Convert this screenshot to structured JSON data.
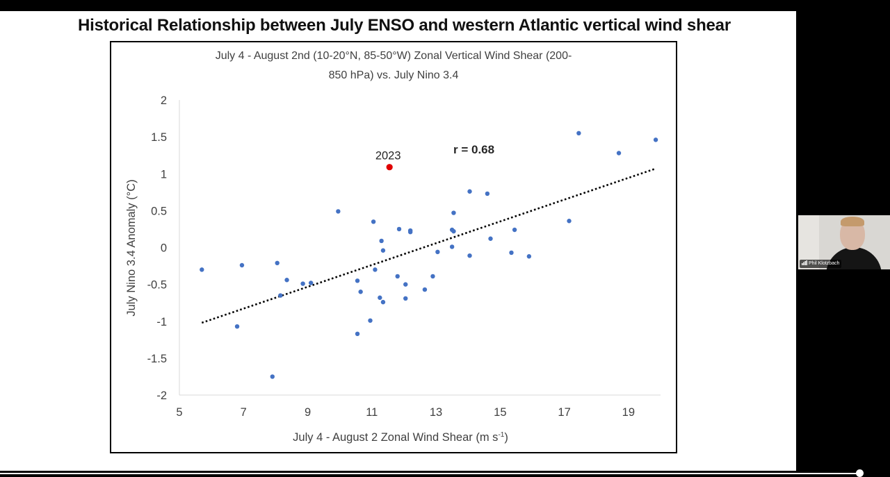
{
  "slide": {
    "title": "Historical Relationship between July ENSO and western Atlantic vertical wind shear"
  },
  "participant": {
    "name": "Phil Klotzbach"
  },
  "video_progress": 0.966,
  "chart_data": {
    "type": "scatter",
    "title_line1": "July 4 - August 2nd (10-20°N, 85-50°W) Zonal Vertical Wind Shear (200-",
    "title_line2": "850 hPa) vs. July Nino 3.4",
    "xlabel": "July 4 - August 2 Zonal Wind Shear (m s",
    "xlabel_sup": "-1",
    "xlabel_end": ")",
    "ylabel": "July Nino 3.4 Anomaly (°C)",
    "xlim": [
      5,
      20
    ],
    "ylim": [
      -2,
      2
    ],
    "x_ticks": [
      "5",
      "7",
      "9",
      "11",
      "13",
      "15",
      "17",
      "19"
    ],
    "y_ticks": [
      "2",
      "1.5",
      "1",
      "0.5",
      "0",
      "-0.5",
      "-1",
      "-1.5",
      "-2"
    ],
    "point_color": "#4472c4",
    "highlight_color": "#e00000",
    "trendline_color": "#000000",
    "points": [
      {
        "x": 5.7,
        "y": -0.3
      },
      {
        "x": 6.8,
        "y": -1.07
      },
      {
        "x": 6.95,
        "y": -0.24
      },
      {
        "x": 7.9,
        "y": -1.75
      },
      {
        "x": 8.05,
        "y": -0.21
      },
      {
        "x": 8.15,
        "y": -0.65
      },
      {
        "x": 8.35,
        "y": -0.44
      },
      {
        "x": 8.85,
        "y": -0.49
      },
      {
        "x": 9.1,
        "y": -0.48
      },
      {
        "x": 9.95,
        "y": 0.49
      },
      {
        "x": 10.55,
        "y": -0.45
      },
      {
        "x": 10.55,
        "y": -1.17
      },
      {
        "x": 10.65,
        "y": -0.6
      },
      {
        "x": 10.95,
        "y": -0.99
      },
      {
        "x": 11.05,
        "y": 0.35
      },
      {
        "x": 11.1,
        "y": -0.3
      },
      {
        "x": 11.25,
        "y": -0.68
      },
      {
        "x": 11.3,
        "y": 0.09
      },
      {
        "x": 11.35,
        "y": -0.74
      },
      {
        "x": 11.35,
        "y": -0.04
      },
      {
        "x": 11.8,
        "y": -0.39
      },
      {
        "x": 11.85,
        "y": 0.25
      },
      {
        "x": 12.05,
        "y": -0.5
      },
      {
        "x": 12.05,
        "y": -0.69
      },
      {
        "x": 12.2,
        "y": 0.23
      },
      {
        "x": 12.2,
        "y": 0.21
      },
      {
        "x": 12.65,
        "y": -0.57
      },
      {
        "x": 12.9,
        "y": -0.39
      },
      {
        "x": 13.05,
        "y": -0.06
      },
      {
        "x": 13.5,
        "y": 0.24
      },
      {
        "x": 13.5,
        "y": 0.01
      },
      {
        "x": 13.55,
        "y": 0.22
      },
      {
        "x": 13.55,
        "y": 0.47
      },
      {
        "x": 14.05,
        "y": 0.76
      },
      {
        "x": 14.05,
        "y": -0.11
      },
      {
        "x": 14.6,
        "y": 0.73
      },
      {
        "x": 14.7,
        "y": 0.12
      },
      {
        "x": 15.35,
        "y": -0.07
      },
      {
        "x": 15.45,
        "y": 0.24
      },
      {
        "x": 15.9,
        "y": -0.12
      },
      {
        "x": 17.15,
        "y": 0.36
      },
      {
        "x": 17.45,
        "y": 1.55
      },
      {
        "x": 18.7,
        "y": 1.28
      },
      {
        "x": 19.85,
        "y": 1.46
      }
    ],
    "highlight": {
      "x": 11.55,
      "y": 1.09,
      "label": "2023"
    },
    "trendline": {
      "x": [
        5.7,
        19.85
      ],
      "y": [
        -1.02,
        1.07
      ]
    },
    "annotation": "r = 0.68"
  }
}
